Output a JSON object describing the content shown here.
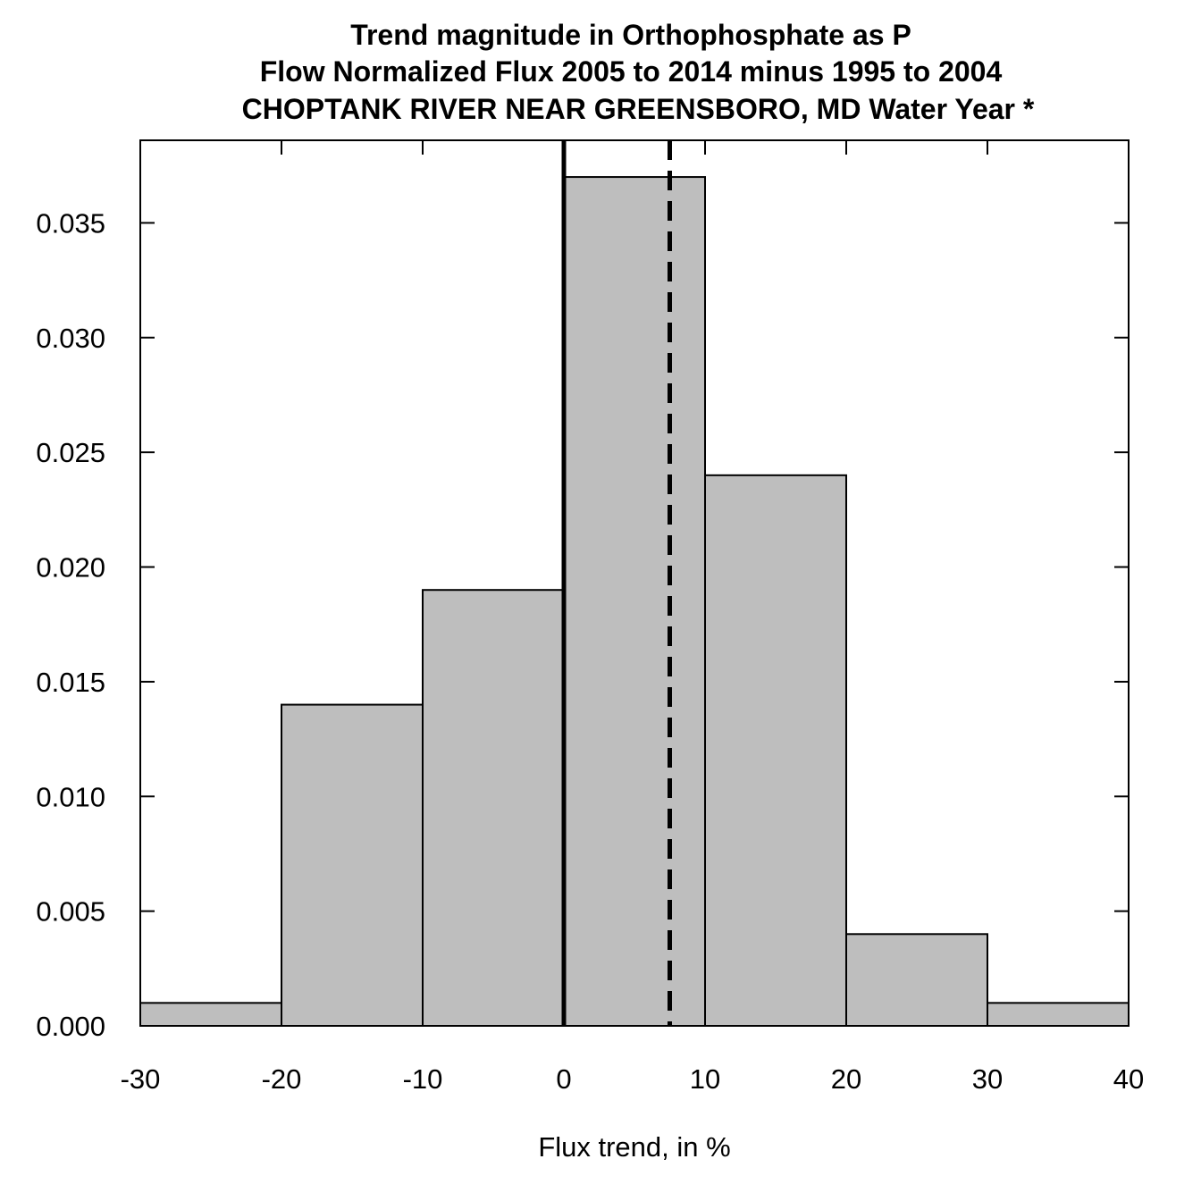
{
  "chart_data": {
    "type": "bar",
    "subtype": "histogram",
    "title_lines": [
      "Trend magnitude in Orthophosphate as P",
      "Flow Normalized Flux 2005 to 2014 minus 1995 to 2004",
      "CHOPTANK RIVER NEAR GREENSBORO, MD Water Year *"
    ],
    "xlabel": "Flux trend, in %",
    "ylabel": "",
    "xlim": [
      -30,
      40
    ],
    "ylim": [
      0,
      0.0386
    ],
    "x_ticks": [
      -30,
      -20,
      -10,
      0,
      10,
      20,
      30,
      40
    ],
    "x_tick_labels": [
      "-30",
      "-20",
      "-10",
      "0",
      "10",
      "20",
      "30",
      "40"
    ],
    "y_ticks": [
      0,
      0.005,
      0.01,
      0.015,
      0.02,
      0.025,
      0.03,
      0.035
    ],
    "y_tick_labels": [
      "0.000",
      "0.005",
      "0.010",
      "0.015",
      "0.020",
      "0.025",
      "0.030",
      "0.035"
    ],
    "bins": [
      {
        "x0": -30,
        "x1": -20,
        "density": 0.001
      },
      {
        "x0": -20,
        "x1": -10,
        "density": 0.014
      },
      {
        "x0": -10,
        "x1": 0,
        "density": 0.019
      },
      {
        "x0": 0,
        "x1": 10,
        "density": 0.037
      },
      {
        "x0": 10,
        "x1": 20,
        "density": 0.024
      },
      {
        "x0": 20,
        "x1": 30,
        "density": 0.004
      },
      {
        "x0": 30,
        "x1": 40,
        "density": 0.001
      }
    ],
    "reference_lines": [
      {
        "x": 0,
        "style": "solid"
      },
      {
        "x": 7.5,
        "style": "dashed"
      }
    ],
    "bar_fill": "#bebebe",
    "bar_stroke": "#000000",
    "grid": false,
    "legend": "none"
  }
}
